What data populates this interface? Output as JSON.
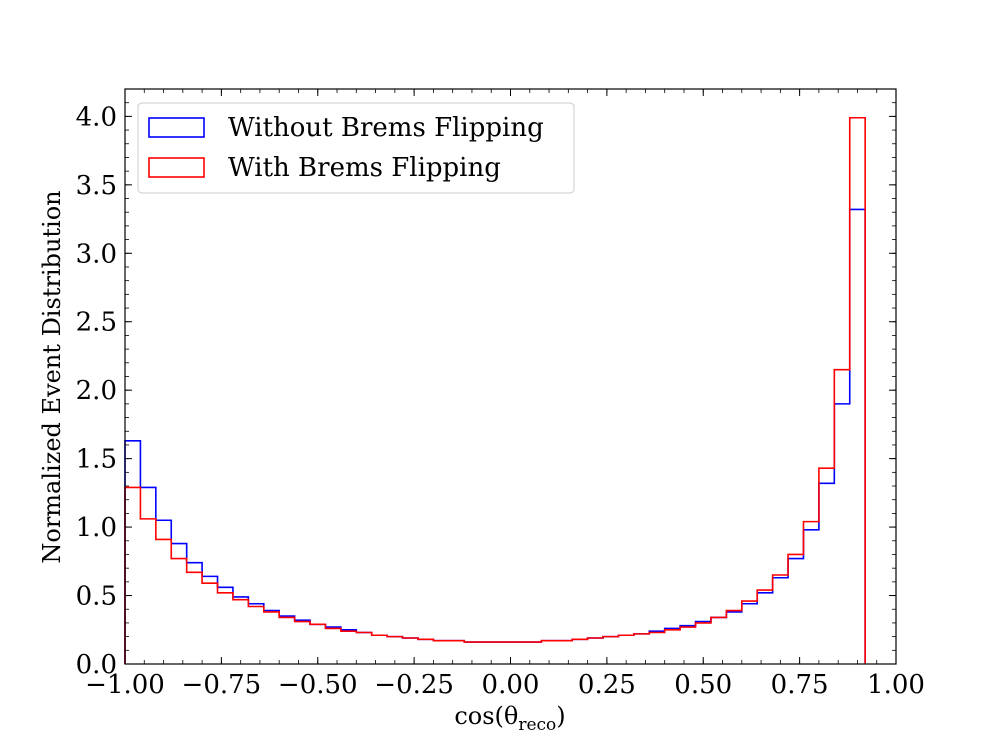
{
  "chart_data": {
    "type": "histogram",
    "title": "",
    "xlabel": "cos(θ",
    "xlabel_sub": "reco",
    "xlabel_close": ")",
    "ylabel": "Normalized Event Distribution",
    "xlim": [
      -1.0,
      1.0
    ],
    "ylim": [
      0.0,
      4.2
    ],
    "grid": false,
    "legend_position": "top-left",
    "x_ticks": [
      -1.0,
      -0.75,
      -0.5,
      -0.25,
      0.0,
      0.25,
      0.5,
      0.75,
      1.0
    ],
    "x_tick_labels": [
      "−1.00",
      "−0.75",
      "−0.50",
      "−0.25",
      "0.00",
      "0.25",
      "0.50",
      "0.75",
      "1.00"
    ],
    "y_ticks": [
      0.0,
      0.5,
      1.0,
      1.5,
      2.0,
      2.5,
      3.0,
      3.5,
      4.0
    ],
    "y_tick_labels": [
      "0.0",
      "0.5",
      "1.0",
      "1.5",
      "2.0",
      "2.5",
      "3.0",
      "3.5",
      "4.0"
    ],
    "bin_edges_start": -1.0,
    "bin_width": 0.04,
    "series": [
      {
        "name": "Without Brems Flipping",
        "color": "#0000ff",
        "values": [
          1.63,
          1.29,
          1.05,
          0.88,
          0.74,
          0.64,
          0.56,
          0.49,
          0.44,
          0.39,
          0.35,
          0.32,
          0.29,
          0.27,
          0.25,
          0.23,
          0.21,
          0.2,
          0.19,
          0.18,
          0.17,
          0.17,
          0.16,
          0.16,
          0.16,
          0.16,
          0.16,
          0.17,
          0.17,
          0.18,
          0.19,
          0.2,
          0.21,
          0.22,
          0.24,
          0.26,
          0.28,
          0.31,
          0.34,
          0.38,
          0.44,
          0.52,
          0.63,
          0.77,
          0.98,
          1.32,
          1.9,
          3.32
        ]
      },
      {
        "name": "With Brems Flipping",
        "color": "#ff0000",
        "values": [
          1.29,
          1.06,
          0.91,
          0.77,
          0.67,
          0.59,
          0.52,
          0.47,
          0.42,
          0.38,
          0.34,
          0.31,
          0.29,
          0.26,
          0.24,
          0.23,
          0.21,
          0.2,
          0.19,
          0.18,
          0.17,
          0.17,
          0.16,
          0.16,
          0.16,
          0.16,
          0.16,
          0.17,
          0.17,
          0.18,
          0.19,
          0.2,
          0.21,
          0.22,
          0.23,
          0.25,
          0.27,
          0.3,
          0.34,
          0.39,
          0.46,
          0.54,
          0.65,
          0.8,
          1.04,
          1.43,
          2.15,
          3.99
        ]
      }
    ]
  }
}
